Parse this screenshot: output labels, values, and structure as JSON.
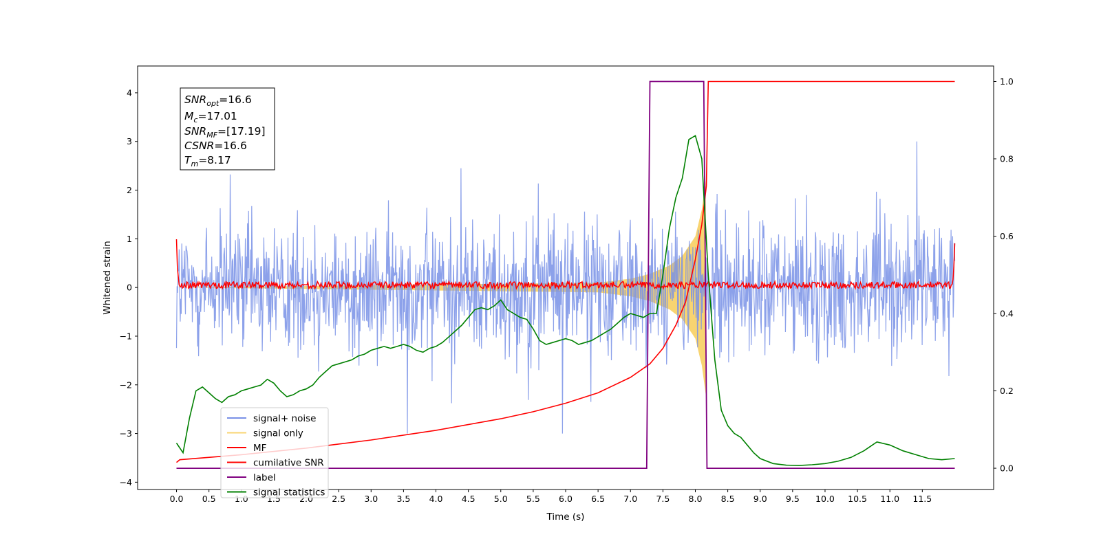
{
  "chart_data": {
    "type": "line",
    "xlabel": "Time (s)",
    "ylabel": "Whitened strain",
    "xlim": [
      -0.6,
      12.6
    ],
    "ylim": [
      -4.15,
      4.55
    ],
    "y2lim": [
      -0.055,
      1.04
    ],
    "x_ticks": [
      0.0,
      0.5,
      1.0,
      1.5,
      2.0,
      2.5,
      3.0,
      3.5,
      4.0,
      4.5,
      5.0,
      5.5,
      6.0,
      6.5,
      7.0,
      7.5,
      8.0,
      8.5,
      9.0,
      9.5,
      10.0,
      10.5,
      11.0,
      11.5
    ],
    "y_ticks": [
      -4,
      -3,
      -2,
      -1,
      0,
      1,
      2,
      3,
      4
    ],
    "y2_ticks": [
      0.0,
      0.2,
      0.4,
      0.6,
      0.8,
      1.0
    ],
    "y_tick_labels": [
      "−4",
      "−3",
      "−2",
      "−1",
      "0",
      "1",
      "2",
      "3",
      "4"
    ],
    "x_tick_labels": [
      "0.0",
      "0.5",
      "1.0",
      "1.5",
      "2.0",
      "2.5",
      "3.0",
      "3.5",
      "4.0",
      "4.5",
      "5.0",
      "5.5",
      "6.0",
      "6.5",
      "7.0",
      "7.5",
      "8.0",
      "8.5",
      "9.0",
      "9.5",
      "10.0",
      "10.5",
      "11.0",
      "11.5"
    ],
    "y2_tick_labels": [
      "0.0",
      "0.2",
      "0.4",
      "0.6",
      "0.8",
      "1.0"
    ],
    "grid": false,
    "legend_position": "lower-left",
    "annotation": {
      "lines": [
        {
          "sym": "SNR",
          "sub": "opt",
          "value": "=16.6"
        },
        {
          "sym": "M",
          "sub": "c",
          "value": "=17.01"
        },
        {
          "sym": "SNR",
          "sub": "MF",
          "value": "=[17.19]"
        },
        {
          "sym": "CSNR",
          "sub": "",
          "value": "=16.6"
        },
        {
          "sym": "T",
          "sub": "m",
          "value": "=8.17"
        }
      ]
    },
    "series": [
      {
        "name": "signal+ noise",
        "color": "#7890e6",
        "axis": "left",
        "kind": "noise-band",
        "x_range": [
          0.0,
          12.0
        ],
        "typical_envelope": [
          -1.7,
          1.7
        ],
        "peak_envelope": [
          -3.0,
          3.0
        ]
      },
      {
        "name": "signal only",
        "color": "#f5c542",
        "axis": "left",
        "kind": "chirp",
        "x": [
          0.0,
          6.5,
          7.0,
          7.3,
          7.6,
          7.8,
          8.0,
          8.1,
          8.17
        ],
        "amplitude": [
          0.0,
          0.1,
          0.18,
          0.28,
          0.45,
          0.65,
          1.05,
          1.6,
          2.3
        ]
      },
      {
        "name": "MF",
        "color": "#ff0000",
        "axis": "left",
        "kind": "mf-band",
        "x": [
          0.0,
          0.02,
          0.05,
          11.95,
          11.98,
          12.0
        ],
        "y": [
          1.0,
          0.2,
          0.05,
          0.05,
          0.2,
          0.9
        ]
      },
      {
        "name": "cumilative SNR",
        "color": "#ff0000",
        "axis": "right",
        "x": [
          0.0,
          0.05,
          1.0,
          2.0,
          3.0,
          4.0,
          5.0,
          5.5,
          6.0,
          6.5,
          7.0,
          7.3,
          7.5,
          7.7,
          7.85,
          8.0,
          8.1,
          8.17,
          8.2,
          12.0
        ],
        "y": [
          0.015,
          0.022,
          0.035,
          0.052,
          0.073,
          0.098,
          0.128,
          0.146,
          0.168,
          0.195,
          0.235,
          0.27,
          0.31,
          0.37,
          0.43,
          0.54,
          0.63,
          0.73,
          1.0,
          1.0
        ]
      },
      {
        "name": "label",
        "color": "#800080",
        "axis": "right",
        "x": [
          0.0,
          7.25,
          7.3,
          8.13,
          8.18,
          12.0
        ],
        "y": [
          0.0,
          0.0,
          1.0,
          1.0,
          0.0,
          0.0
        ]
      },
      {
        "name": "signal statistics",
        "color": "#008000",
        "axis": "right",
        "x": [
          0.0,
          0.1,
          0.2,
          0.3,
          0.4,
          0.5,
          0.6,
          0.7,
          0.8,
          0.9,
          1.0,
          1.1,
          1.2,
          1.3,
          1.4,
          1.5,
          1.6,
          1.7,
          1.8,
          1.9,
          2.0,
          2.1,
          2.2,
          2.3,
          2.4,
          2.5,
          2.6,
          2.7,
          2.8,
          2.9,
          3.0,
          3.1,
          3.2,
          3.3,
          3.4,
          3.5,
          3.6,
          3.7,
          3.8,
          3.9,
          4.0,
          4.1,
          4.2,
          4.3,
          4.4,
          4.5,
          4.6,
          4.7,
          4.8,
          4.9,
          5.0,
          5.1,
          5.2,
          5.3,
          5.4,
          5.5,
          5.6,
          5.7,
          5.8,
          5.9,
          6.0,
          6.1,
          6.2,
          6.3,
          6.4,
          6.5,
          6.6,
          6.7,
          6.8,
          6.9,
          7.0,
          7.1,
          7.2,
          7.3,
          7.4,
          7.5,
          7.6,
          7.7,
          7.8,
          7.9,
          8.0,
          8.1,
          8.2,
          8.3,
          8.4,
          8.5,
          8.6,
          8.7,
          8.8,
          8.9,
          9.0,
          9.2,
          9.4,
          9.6,
          9.8,
          10.0,
          10.2,
          10.4,
          10.6,
          10.8,
          11.0,
          11.2,
          11.4,
          11.6,
          11.8,
          12.0
        ],
        "y": [
          0.065,
          0.04,
          0.13,
          0.2,
          0.21,
          0.195,
          0.18,
          0.17,
          0.185,
          0.19,
          0.2,
          0.205,
          0.21,
          0.215,
          0.23,
          0.22,
          0.2,
          0.185,
          0.19,
          0.2,
          0.205,
          0.215,
          0.235,
          0.25,
          0.265,
          0.27,
          0.275,
          0.28,
          0.29,
          0.295,
          0.305,
          0.31,
          0.315,
          0.31,
          0.315,
          0.32,
          0.315,
          0.305,
          0.3,
          0.31,
          0.315,
          0.325,
          0.34,
          0.355,
          0.37,
          0.39,
          0.41,
          0.415,
          0.41,
          0.42,
          0.435,
          0.41,
          0.4,
          0.39,
          0.385,
          0.36,
          0.33,
          0.32,
          0.325,
          0.33,
          0.335,
          0.33,
          0.32,
          0.325,
          0.33,
          0.34,
          0.35,
          0.36,
          0.375,
          0.39,
          0.4,
          0.395,
          0.39,
          0.4,
          0.4,
          0.5,
          0.62,
          0.7,
          0.75,
          0.85,
          0.86,
          0.8,
          0.5,
          0.28,
          0.15,
          0.11,
          0.09,
          0.08,
          0.06,
          0.04,
          0.025,
          0.012,
          0.008,
          0.007,
          0.009,
          0.012,
          0.018,
          0.028,
          0.045,
          0.068,
          0.06,
          0.045,
          0.035,
          0.025,
          0.022,
          0.025
        ]
      }
    ]
  }
}
